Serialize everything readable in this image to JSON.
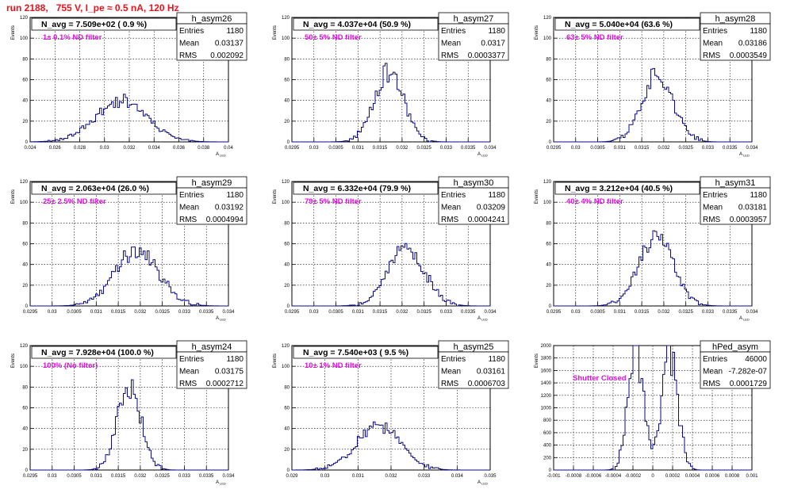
{
  "header": "run 2188,   755 V, I_pe ≈ 0.5 nA, 120 Hz",
  "labels": {
    "entries": "Entries",
    "mean": "Mean",
    "rms": "RMS"
  },
  "colors": {
    "histogram": "#0a0a8c",
    "annotation": "#e010e0",
    "header": "#e8141c"
  },
  "chart_data": [
    {
      "type": "histogram",
      "title": "h_asym26",
      "stat_header": "N_avg = 7.509e+02 ( 0.9 %)",
      "annotation": "1± 0.1% ND filter",
      "entries": "1180",
      "mean": "0.03137",
      "rms": "0.002092",
      "xlabel": "A_LED",
      "ylabel": "Events",
      "xlim": [
        0.024,
        0.04
      ],
      "ylim": [
        0,
        120
      ],
      "xticks": [
        0.024,
        0.026,
        0.028,
        0.03,
        0.032,
        0.034,
        0.036,
        0.038,
        0.04
      ],
      "xtick_labels": [
        "0.024",
        "0.026",
        "0.028",
        "0.03",
        "0.032",
        "0.034",
        "0.036",
        "0.038",
        "0.04"
      ],
      "yticks": [
        0,
        20,
        40,
        60,
        80,
        100,
        120
      ],
      "ytick_labels": [
        "0",
        "20",
        "40",
        "60",
        "80",
        "100",
        "120"
      ],
      "mean_val": 0.03137,
      "sigma_val": 0.002092,
      "peak": 40,
      "modes": 1,
      "bins": 100,
      "seed": 11
    },
    {
      "type": "histogram",
      "title": "h_asym27",
      "stat_header": "N_avg = 4.037e+04 (50.9 %)",
      "annotation": "50± 5% ND filter",
      "entries": "1180",
      "mean": "0.0317",
      "rms": "0.0003377",
      "xlabel": "A_LED",
      "ylabel": "Events",
      "xlim": [
        0.0295,
        0.034
      ],
      "ylim": [
        0,
        120
      ],
      "xticks": [
        0.0295,
        0.03,
        0.0305,
        0.031,
        0.0315,
        0.032,
        0.0325,
        0.033,
        0.0335,
        0.034
      ],
      "xtick_labels": [
        "0.0295",
        "0.03",
        "0.0305",
        "0.031",
        "0.0315",
        "0.032",
        "0.0325",
        "0.033",
        "0.0335",
        "0.034"
      ],
      "yticks": [
        0,
        20,
        40,
        60,
        80,
        100,
        120
      ],
      "ytick_labels": [
        "0",
        "20",
        "40",
        "60",
        "80",
        "100",
        "120"
      ],
      "mean_val": 0.0317,
      "sigma_val": 0.0003377,
      "peak": 68,
      "modes": 1,
      "bins": 100,
      "seed": 23
    },
    {
      "type": "histogram",
      "title": "h_asym28",
      "stat_header": "N_avg = 5.040e+04 (63.6 %)",
      "annotation": "63± 5% ND filter",
      "entries": "1180",
      "mean": "0.03186",
      "rms": "0.0003549",
      "xlabel": "A_LED",
      "ylabel": "Events",
      "xlim": [
        0.0295,
        0.034
      ],
      "ylim": [
        0,
        120
      ],
      "xticks": [
        0.0295,
        0.03,
        0.0305,
        0.031,
        0.0315,
        0.032,
        0.0325,
        0.033,
        0.0335,
        0.034
      ],
      "xtick_labels": [
        "0.0295",
        "0.03",
        "0.0305",
        "0.031",
        "0.0315",
        "0.032",
        "0.0325",
        "0.033",
        "0.0335",
        "0.034"
      ],
      "yticks": [
        0,
        20,
        40,
        60,
        80,
        100,
        120
      ],
      "ytick_labels": [
        "0",
        "20",
        "40",
        "60",
        "80",
        "100",
        "120"
      ],
      "mean_val": 0.03186,
      "sigma_val": 0.0003549,
      "peak": 66,
      "modes": 1,
      "bins": 100,
      "seed": 37
    },
    {
      "type": "histogram",
      "title": "h_asym29",
      "stat_header": "N_avg = 2.063e+04 (26.0 %)",
      "annotation": "25± 2.5% ND filter",
      "entries": "1180",
      "mean": "0.03192",
      "rms": "0.0004994",
      "xlabel": "A_LED",
      "ylabel": "Events",
      "xlim": [
        0.0295,
        0.034
      ],
      "ylim": [
        0,
        120
      ],
      "xticks": [
        0.0295,
        0.03,
        0.0305,
        0.031,
        0.0315,
        0.032,
        0.0325,
        0.033,
        0.0335,
        0.034
      ],
      "xtick_labels": [
        "0.0295",
        "0.03",
        "0.0305",
        "0.031",
        "0.0315",
        "0.032",
        "0.0325",
        "0.033",
        "0.0335",
        "0.034"
      ],
      "yticks": [
        0,
        20,
        40,
        60,
        80,
        100,
        120
      ],
      "ytick_labels": [
        "0",
        "20",
        "40",
        "60",
        "80",
        "100",
        "120"
      ],
      "mean_val": 0.03192,
      "sigma_val": 0.0004994,
      "peak": 53,
      "modes": 1,
      "bins": 100,
      "seed": 41
    },
    {
      "type": "histogram",
      "title": "h_asym30",
      "stat_header": "N_avg = 6.332e+04 (79.9 %)",
      "annotation": "79± 5% ND filter",
      "entries": "1180",
      "mean": "0.03209",
      "rms": "0.0004241",
      "xlabel": "A_LED",
      "ylabel": "Events",
      "xlim": [
        0.0295,
        0.034
      ],
      "ylim": [
        0,
        120
      ],
      "xticks": [
        0.0295,
        0.03,
        0.0305,
        0.031,
        0.0315,
        0.032,
        0.0325,
        0.033,
        0.0335,
        0.034
      ],
      "xtick_labels": [
        "0.0295",
        "0.03",
        "0.0305",
        "0.031",
        "0.0315",
        "0.032",
        "0.0325",
        "0.033",
        "0.0335",
        "0.034"
      ],
      "yticks": [
        0,
        20,
        40,
        60,
        80,
        100,
        120
      ],
      "ytick_labels": [
        "0",
        "20",
        "40",
        "60",
        "80",
        "100",
        "120"
      ],
      "mean_val": 0.03209,
      "sigma_val": 0.0004241,
      "peak": 55,
      "modes": 1,
      "bins": 100,
      "seed": 53
    },
    {
      "type": "histogram",
      "title": "h_asym31",
      "stat_header": "N_avg = 3.212e+04 (40.5 %)",
      "annotation": "40± 4% ND filter",
      "entries": "1180",
      "mean": "0.03181",
      "rms": "0.0003957",
      "xlabel": "A_LED",
      "ylabel": "Events",
      "xlim": [
        0.0295,
        0.034
      ],
      "ylim": [
        0,
        120
      ],
      "xticks": [
        0.0295,
        0.03,
        0.0305,
        0.031,
        0.0315,
        0.032,
        0.0325,
        0.033,
        0.0335,
        0.034
      ],
      "xtick_labels": [
        "0.0295",
        "0.03",
        "0.0305",
        "0.031",
        "0.0315",
        "0.032",
        "0.0325",
        "0.033",
        "0.0335",
        "0.034"
      ],
      "yticks": [
        0,
        20,
        40,
        60,
        80,
        100,
        120
      ],
      "ytick_labels": [
        "0",
        "20",
        "40",
        "60",
        "80",
        "100",
        "120"
      ],
      "mean_val": 0.03181,
      "sigma_val": 0.0003957,
      "peak": 66,
      "modes": 1,
      "bins": 100,
      "seed": 67
    },
    {
      "type": "histogram",
      "title": "h_asym24",
      "stat_header": "N_avg = 7.928e+04 (100.0 %)",
      "annotation": "100% (No filter)",
      "entries": "1180",
      "mean": "0.03175",
      "rms": "0.0002712",
      "xlabel": "A_LED",
      "ylabel": "Events",
      "xlim": [
        0.0295,
        0.034
      ],
      "ylim": [
        0,
        120
      ],
      "xticks": [
        0.0295,
        0.03,
        0.0305,
        0.031,
        0.0315,
        0.032,
        0.0325,
        0.033,
        0.0335,
        0.034
      ],
      "xtick_labels": [
        "0.0295",
        "0.03",
        "0.0305",
        "0.031",
        "0.0315",
        "0.032",
        "0.0325",
        "0.033",
        "0.0335",
        "0.034"
      ],
      "yticks": [
        0,
        20,
        40,
        60,
        80,
        100,
        120
      ],
      "ytick_labels": [
        "0",
        "20",
        "40",
        "60",
        "80",
        "100",
        "120"
      ],
      "mean_val": 0.03175,
      "sigma_val": 0.0002712,
      "peak": 82,
      "modes": 1,
      "bins": 100,
      "seed": 71
    },
    {
      "type": "histogram",
      "title": "h_asym25",
      "stat_header": "N_avg = 7.540e+03 ( 9.5 %)",
      "annotation": "10± 1% ND filter",
      "entries": "1180",
      "mean": "0.03161",
      "rms": "0.0006703",
      "xlabel": "A_LED",
      "ylabel": "Events",
      "xlim": [
        0.029,
        0.035
      ],
      "ylim": [
        0,
        120
      ],
      "xticks": [
        0.029,
        0.03,
        0.031,
        0.032,
        0.033,
        0.034,
        0.035
      ],
      "xtick_labels": [
        "0.029",
        "0.03",
        "0.031",
        "0.032",
        "0.033",
        "0.034",
        "0.035"
      ],
      "yticks": [
        0,
        20,
        40,
        60,
        80,
        100,
        120
      ],
      "ytick_labels": [
        "0",
        "20",
        "40",
        "60",
        "80",
        "100",
        "120"
      ],
      "mean_val": 0.03161,
      "sigma_val": 0.0006703,
      "peak": 43,
      "modes": 1,
      "bins": 100,
      "seed": 83
    },
    {
      "type": "histogram",
      "title": "hPed_asym",
      "stat_header": "",
      "annotation": "Shutter Closed",
      "entries": "46000",
      "mean": "-7.282e-07",
      "rms": "0.0001729",
      "xlabel": "",
      "ylabel": "Events",
      "xlim": [
        -0.001,
        0.001
      ],
      "ylim": [
        0,
        2000
      ],
      "xticks": [
        -0.001,
        -0.0008,
        -0.0006,
        -0.0004,
        -0.0002,
        0,
        0.0002,
        0.0004,
        0.0006,
        0.0008,
        0.001
      ],
      "xtick_labels": [
        "-0.001",
        "-0.0008",
        "-0.0006",
        "-0.0004",
        "-0.0002",
        "0",
        "0.0002",
        "0.0004",
        "0.0006",
        "0.0008",
        "0.001"
      ],
      "yticks": [
        0,
        200,
        400,
        600,
        800,
        1000,
        1200,
        1400,
        1600,
        1800,
        2000
      ],
      "ytick_labels": [
        "0",
        "200",
        "400",
        "600",
        "800",
        "1000",
        "1200",
        "1400",
        "1600",
        "1800",
        "2000"
      ],
      "mean_val": -7.282e-07,
      "sigma_val": 0.0001729,
      "peak": 1900,
      "modes": 2,
      "mode_centers": [
        -0.00017,
        0.00017
      ],
      "mode_sigma": 8e-05,
      "bins": 100,
      "seed": 97
    }
  ]
}
